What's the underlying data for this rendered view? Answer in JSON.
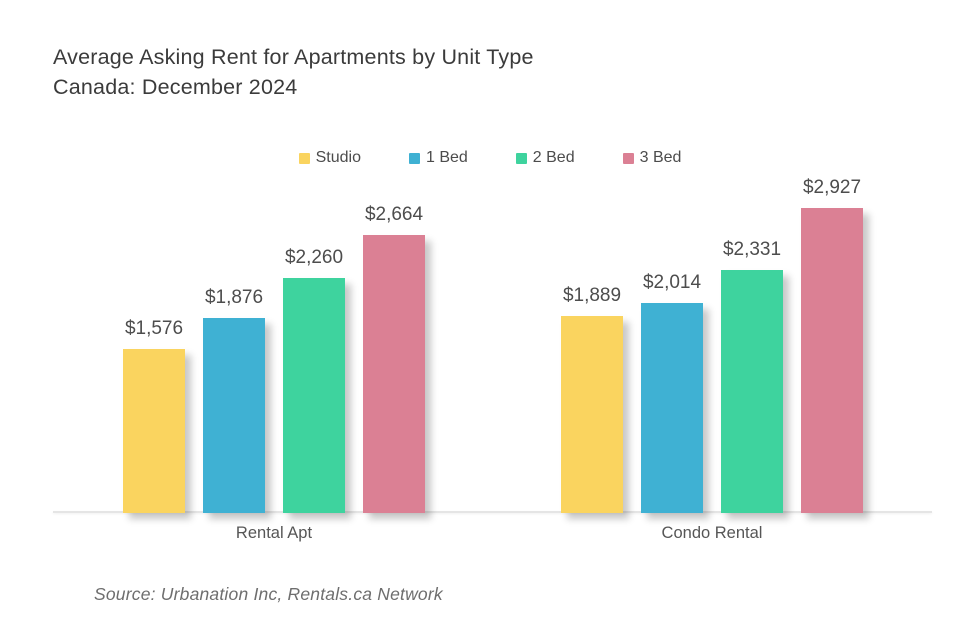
{
  "title_lines": {
    "line1": "Average Asking Rent for Apartments by Unit Type",
    "line2": "Canada: December 2024"
  },
  "source_note": "Source: Urbanation Inc, Rentals.ca Network",
  "chart_data": {
    "type": "bar",
    "title": "Average Asking Rent for Apartments by Unit Type — Canada: December 2024",
    "categories": [
      "Rental Apt",
      "Condo Rental"
    ],
    "series": [
      {
        "name": "Studio",
        "color": "#FAD45F",
        "values": [
          1576,
          1889
        ],
        "labels": [
          "$1,576",
          "$1,889"
        ]
      },
      {
        "name": "1 Bed",
        "color": "#3FB1D3",
        "values": [
          1876,
          2014
        ],
        "labels": [
          "$1,876",
          "$2,014"
        ]
      },
      {
        "name": "2 Bed",
        "color": "#3ED39E",
        "values": [
          2260,
          2331
        ],
        "labels": [
          "$2,260",
          "$2,331"
        ]
      },
      {
        "name": "3 Bed",
        "color": "#DB8094",
        "values": [
          2664,
          2927
        ],
        "labels": [
          "$2,664",
          "$2,927"
        ]
      }
    ],
    "xlabel": "",
    "ylabel": "",
    "ylim": [
      0,
      3000
    ],
    "grid": false,
    "y_axis_visible": false,
    "legend_position": "top",
    "value_prefix": "$"
  }
}
